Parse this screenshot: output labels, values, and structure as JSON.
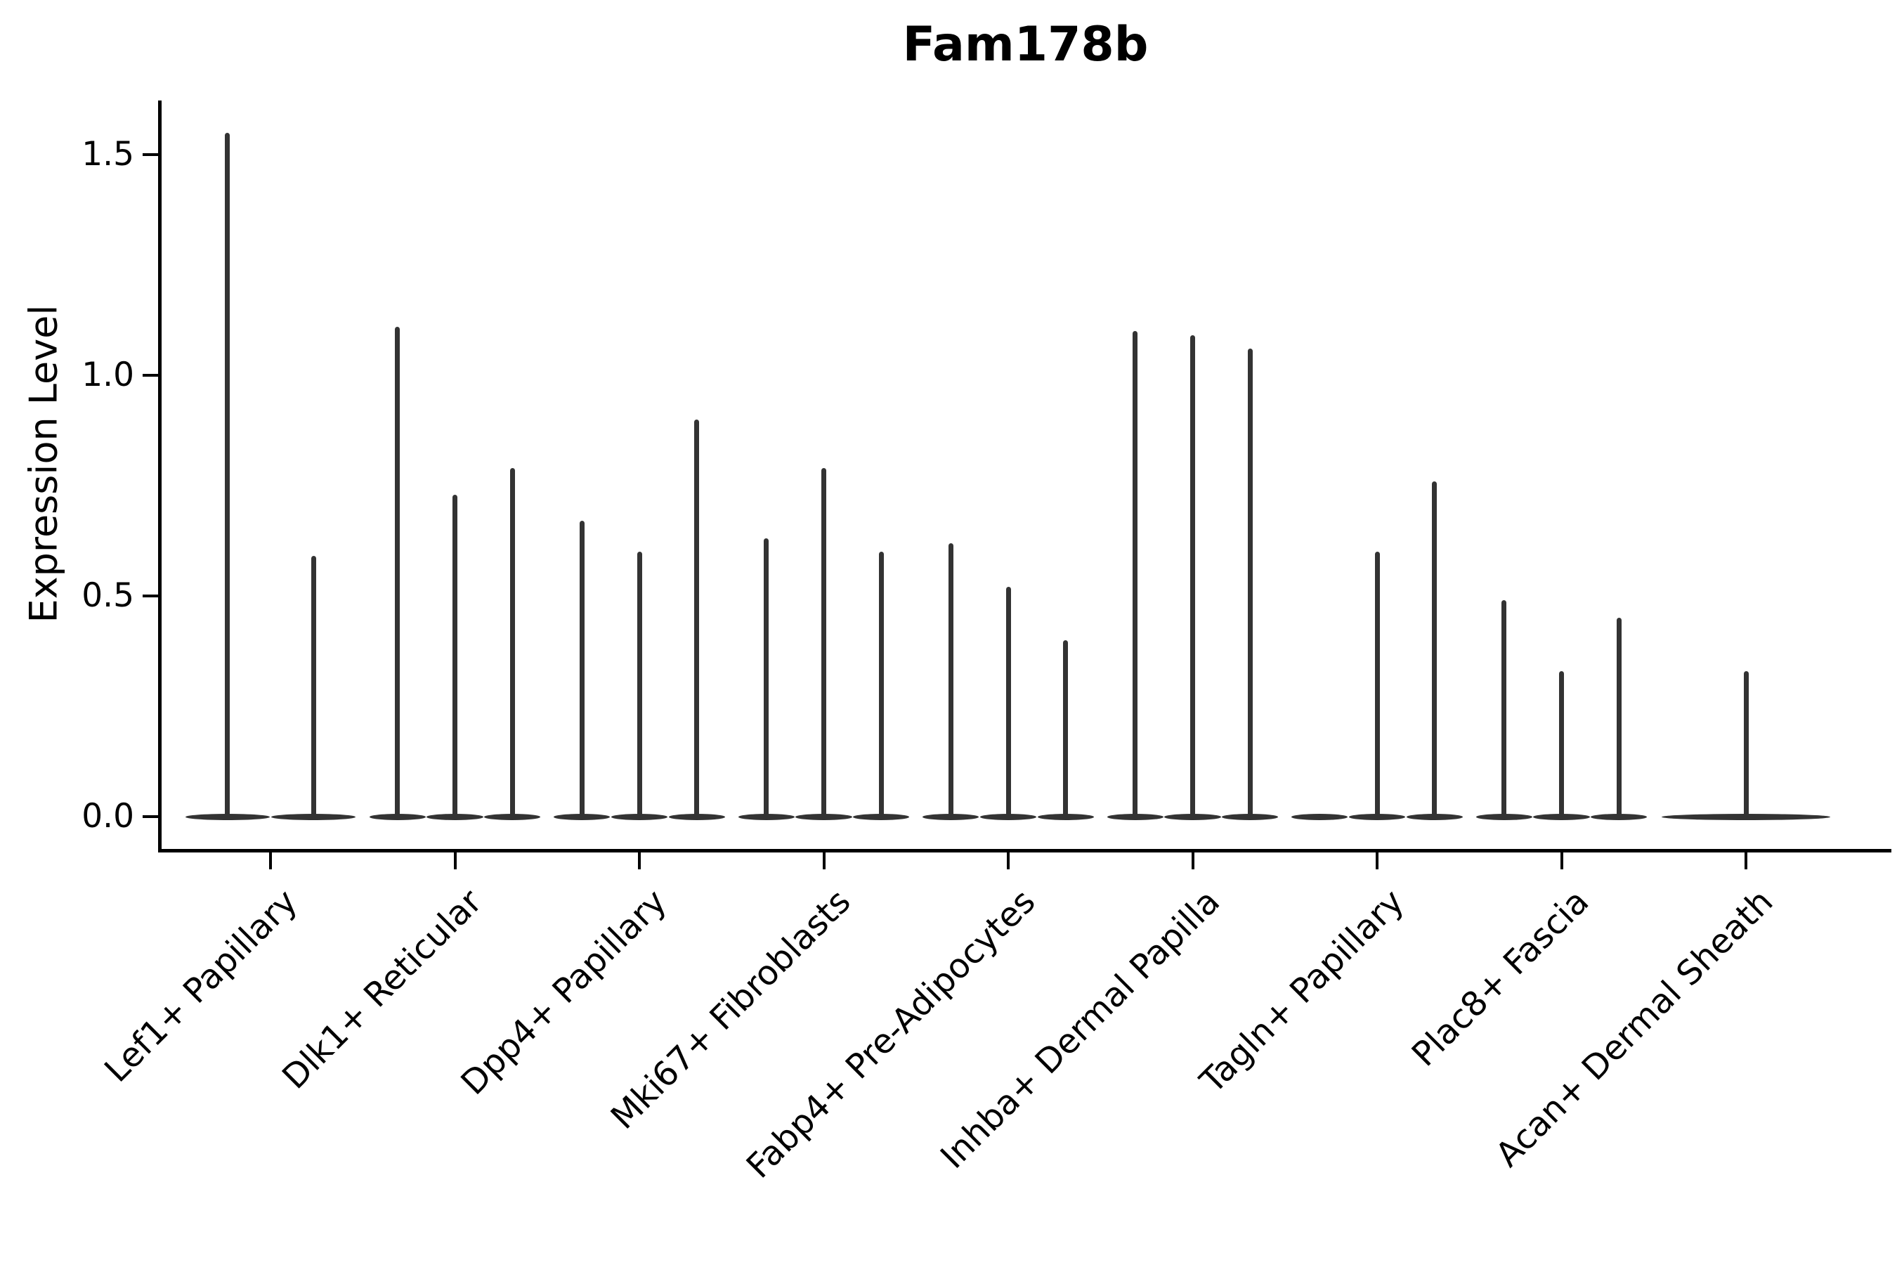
{
  "title": "Fam178b",
  "ylabel": "Expression Level",
  "chart_data": {
    "type": "violin",
    "title": "Fam178b",
    "xlabel": "",
    "ylabel": "Expression Level",
    "ylim": [
      -0.08,
      1.62
    ],
    "yticks": [
      {
        "value": 0.0,
        "label": "0.0"
      },
      {
        "value": 0.5,
        "label": "0.5"
      },
      {
        "value": 1.0,
        "label": "1.0"
      },
      {
        "value": 1.5,
        "label": "1.5"
      }
    ],
    "grid": false,
    "legend": "none",
    "violin_color": "#333333",
    "categories": [
      "Lef1+ Papillary",
      "Dlk1+ Reticular",
      "Dpp4+ Papillary",
      "Mki67+ Fibroblasts",
      "Fabp4+ Pre-Adipocytes",
      "Inhba+ Dermal Papilla",
      "Tagln+ Papillary",
      "Plac8+ Fascia",
      "Acan+ Dermal Sheath"
    ],
    "series": [
      {
        "category": "Lef1+ Papillary",
        "violin_peaks": [
          1.55,
          0.59
        ]
      },
      {
        "category": "Dlk1+ Reticular",
        "violin_peaks": [
          1.11,
          0.73,
          0.79
        ]
      },
      {
        "category": "Dpp4+ Papillary",
        "violin_peaks": [
          0.67,
          0.6,
          0.9
        ]
      },
      {
        "category": "Mki67+ Fibroblasts",
        "violin_peaks": [
          0.63,
          0.79,
          0.6
        ]
      },
      {
        "category": "Fabp4+ Pre-Adipocytes",
        "violin_peaks": [
          0.62,
          0.52,
          0.4
        ]
      },
      {
        "category": "Inhba+ Dermal Papilla",
        "violin_peaks": [
          1.1,
          1.09,
          1.06
        ]
      },
      {
        "category": "Tagln+ Papillary",
        "violin_peaks": [
          0.0,
          0.6,
          0.76
        ]
      },
      {
        "category": "Plac8+ Fascia",
        "violin_peaks": [
          0.49,
          0.33,
          0.45
        ]
      },
      {
        "category": "Acan+ Dermal Sheath",
        "violin_peaks": [
          0.33
        ]
      }
    ]
  }
}
